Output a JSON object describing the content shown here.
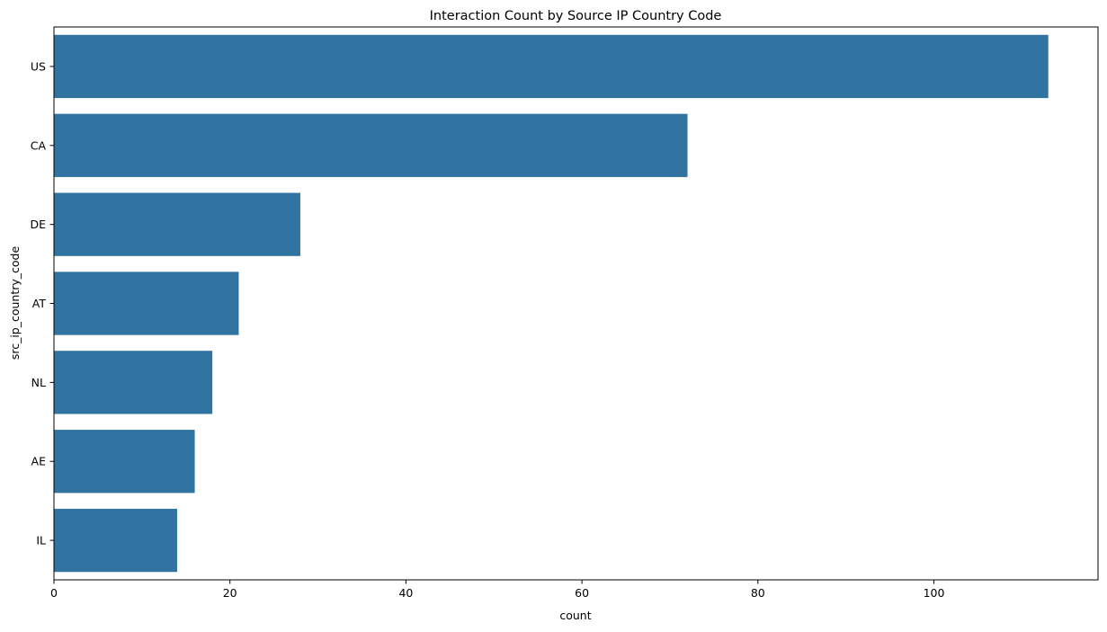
{
  "chart_data": {
    "type": "bar",
    "orientation": "horizontal",
    "title": "Interaction Count by Source IP Country Code",
    "xlabel": "count",
    "ylabel": "src_ip_country_code",
    "categories": [
      "US",
      "CA",
      "DE",
      "AT",
      "NL",
      "AE",
      "IL"
    ],
    "values": [
      113,
      72,
      28,
      21,
      18,
      16,
      14
    ],
    "xlim": [
      0,
      118.65
    ],
    "xticks": [
      0,
      20,
      40,
      60,
      80,
      100
    ],
    "grid": false,
    "legend": "none",
    "bar_color": "#3274a1"
  }
}
